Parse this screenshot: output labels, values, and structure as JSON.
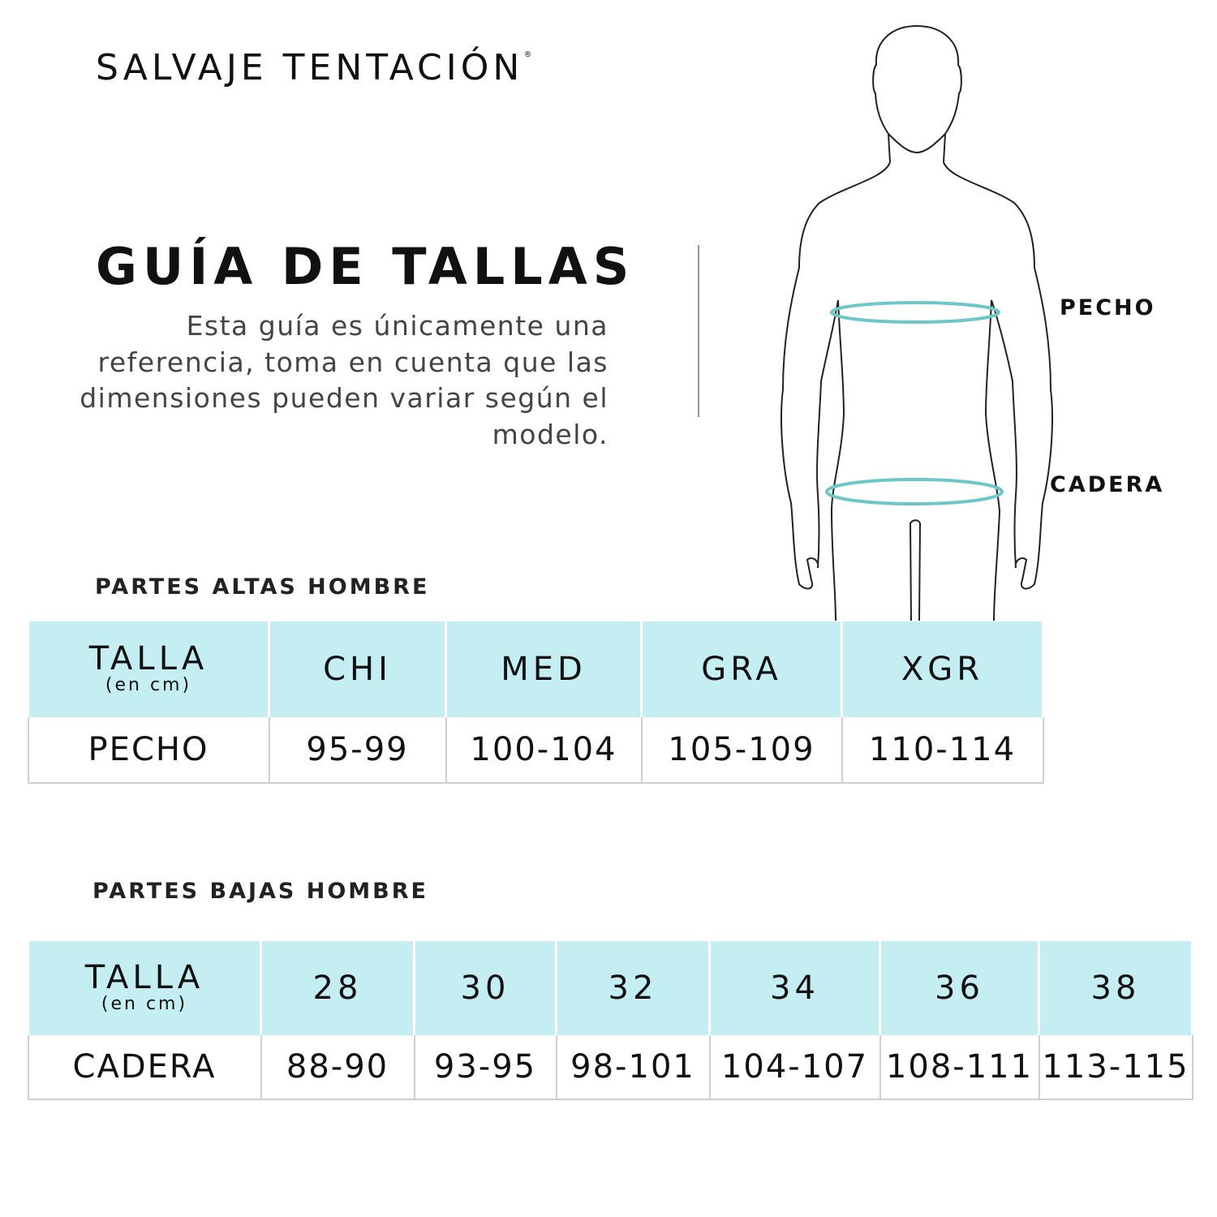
{
  "brand": {
    "name": "SALVAJE TENTACIÓN",
    "mark": "®"
  },
  "title": "GUÍA DE TALLAS",
  "description": "Esta guía es únicamente una referencia, toma en cuenta que las dimensiones pueden variar según el modelo.",
  "figure": {
    "labels": {
      "chest": "PECHO",
      "hip": "CADERA"
    },
    "ring_color": "#6cc7c6"
  },
  "colors": {
    "header_bg": "#c4eef2",
    "text": "#111111"
  },
  "tops": {
    "section": "PARTES ALTAS HOMBRE",
    "header_label": "TALLA",
    "header_unit": "(en cm)",
    "sizes": [
      "CHI",
      "MED",
      "GRA",
      "XGR"
    ],
    "row_label": "PECHO",
    "values": [
      "95-99",
      "100-104",
      "105-109",
      "110-114"
    ]
  },
  "bottoms": {
    "section": "PARTES BAJAS HOMBRE",
    "header_label": "TALLA",
    "header_unit": "(en cm)",
    "sizes": [
      "28",
      "30",
      "32",
      "34",
      "36",
      "38"
    ],
    "row_label": "CADERA",
    "values": [
      "88-90",
      "93-95",
      "98-101",
      "104-107",
      "108-111",
      "113-115"
    ]
  }
}
